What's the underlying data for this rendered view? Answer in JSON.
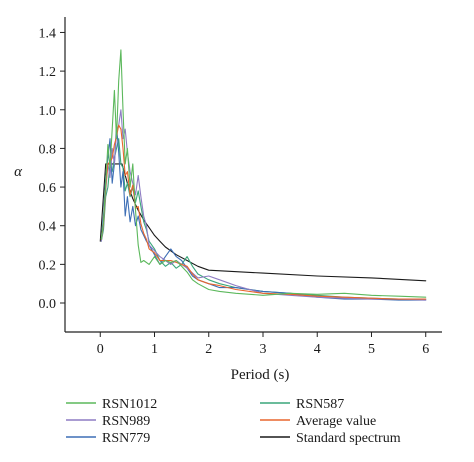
{
  "chart_data": {
    "type": "line",
    "title": "",
    "xlabel": "Period (s)",
    "ylabel": "α",
    "xlim": [
      -0.65,
      6.3
    ],
    "ylim": [
      -0.15,
      1.48
    ],
    "xticks": [
      "0",
      "1",
      "2",
      "3",
      "4",
      "5",
      "6"
    ],
    "xtick_values": [
      0,
      1,
      2,
      3,
      4,
      5,
      6
    ],
    "yticks": [
      "0.0",
      "0.2",
      "0.4",
      "0.6",
      "0.8",
      "1.0",
      "1.2",
      "1.4"
    ],
    "ytick_values": [
      0,
      0.2,
      0.4,
      0.6,
      0.8,
      1.0,
      1.2,
      1.4
    ],
    "grid": false,
    "legend_position": "bottom",
    "series": [
      {
        "name": "RSN1012",
        "color": "#5cb85c",
        "points": [
          [
            0.02,
            0.33
          ],
          [
            0.06,
            0.42
          ],
          [
            0.1,
            0.62
          ],
          [
            0.14,
            0.82
          ],
          [
            0.18,
            0.7
          ],
          [
            0.22,
            0.9
          ],
          [
            0.26,
            1.1
          ],
          [
            0.3,
            0.85
          ],
          [
            0.34,
            1.15
          ],
          [
            0.38,
            1.31
          ],
          [
            0.42,
            1.0
          ],
          [
            0.46,
            0.72
          ],
          [
            0.5,
            0.8
          ],
          [
            0.55,
            0.6
          ],
          [
            0.6,
            0.72
          ],
          [
            0.65,
            0.48
          ],
          [
            0.7,
            0.3
          ],
          [
            0.75,
            0.21
          ],
          [
            0.8,
            0.22
          ],
          [
            0.9,
            0.2
          ],
          [
            1.0,
            0.24
          ],
          [
            1.1,
            0.2
          ],
          [
            1.2,
            0.22
          ],
          [
            1.3,
            0.21
          ],
          [
            1.4,
            0.22
          ],
          [
            1.5,
            0.19
          ],
          [
            1.6,
            0.16
          ],
          [
            1.7,
            0.12
          ],
          [
            1.8,
            0.1
          ],
          [
            2.0,
            0.07
          ],
          [
            2.2,
            0.06
          ],
          [
            2.5,
            0.05
          ],
          [
            3.0,
            0.04
          ],
          [
            3.5,
            0.05
          ],
          [
            4.0,
            0.045
          ],
          [
            4.5,
            0.05
          ],
          [
            5.0,
            0.04
          ],
          [
            5.5,
            0.035
          ],
          [
            6.0,
            0.03
          ]
        ]
      },
      {
        "name": "RSN989",
        "color": "#8e7cc3",
        "points": [
          [
            0.02,
            0.32
          ],
          [
            0.06,
            0.4
          ],
          [
            0.1,
            0.58
          ],
          [
            0.14,
            0.72
          ],
          [
            0.18,
            0.65
          ],
          [
            0.22,
            0.8
          ],
          [
            0.26,
            0.72
          ],
          [
            0.3,
            0.88
          ],
          [
            0.34,
            0.92
          ],
          [
            0.38,
            1.0
          ],
          [
            0.42,
            0.85
          ],
          [
            0.46,
            0.9
          ],
          [
            0.5,
            0.78
          ],
          [
            0.55,
            0.68
          ],
          [
            0.6,
            0.62
          ],
          [
            0.65,
            0.56
          ],
          [
            0.7,
            0.66
          ],
          [
            0.75,
            0.55
          ],
          [
            0.8,
            0.45
          ],
          [
            0.85,
            0.4
          ],
          [
            0.9,
            0.3
          ],
          [
            1.0,
            0.27
          ],
          [
            1.1,
            0.24
          ],
          [
            1.2,
            0.22
          ],
          [
            1.3,
            0.2
          ],
          [
            1.4,
            0.22
          ],
          [
            1.5,
            0.2
          ],
          [
            1.6,
            0.18
          ],
          [
            1.8,
            0.13
          ],
          [
            2.0,
            0.14
          ],
          [
            2.2,
            0.12
          ],
          [
            2.5,
            0.09
          ],
          [
            3.0,
            0.05
          ],
          [
            3.5,
            0.04
          ],
          [
            4.0,
            0.03
          ],
          [
            4.5,
            0.025
          ],
          [
            5.0,
            0.02
          ],
          [
            5.5,
            0.02
          ],
          [
            6.0,
            0.015
          ]
        ]
      },
      {
        "name": "RSN779",
        "color": "#3d6eb5",
        "points": [
          [
            0.02,
            0.33
          ],
          [
            0.06,
            0.45
          ],
          [
            0.1,
            0.65
          ],
          [
            0.14,
            0.75
          ],
          [
            0.18,
            0.85
          ],
          [
            0.22,
            0.62
          ],
          [
            0.26,
            0.72
          ],
          [
            0.3,
            0.92
          ],
          [
            0.34,
            0.78
          ],
          [
            0.38,
            0.6
          ],
          [
            0.42,
            0.68
          ],
          [
            0.46,
            0.45
          ],
          [
            0.5,
            0.55
          ],
          [
            0.55,
            0.42
          ],
          [
            0.6,
            0.5
          ],
          [
            0.65,
            0.4
          ],
          [
            0.7,
            0.45
          ],
          [
            0.75,
            0.38
          ],
          [
            0.8,
            0.35
          ],
          [
            0.85,
            0.32
          ],
          [
            0.9,
            0.3
          ],
          [
            1.0,
            0.25
          ],
          [
            1.1,
            0.2
          ],
          [
            1.2,
            0.24
          ],
          [
            1.3,
            0.28
          ],
          [
            1.4,
            0.24
          ],
          [
            1.5,
            0.22
          ],
          [
            1.6,
            0.18
          ],
          [
            1.7,
            0.14
          ],
          [
            1.8,
            0.12
          ],
          [
            2.0,
            0.1
          ],
          [
            2.2,
            0.08
          ],
          [
            2.5,
            0.08
          ],
          [
            3.0,
            0.06
          ],
          [
            3.5,
            0.05
          ],
          [
            4.0,
            0.03
          ],
          [
            4.5,
            0.02
          ],
          [
            5.0,
            0.02
          ],
          [
            5.5,
            0.015
          ],
          [
            6.0,
            0.015
          ]
        ]
      },
      {
        "name": "RSN587",
        "color": "#3aa67a",
        "points": [
          [
            0.02,
            0.32
          ],
          [
            0.06,
            0.38
          ],
          [
            0.1,
            0.55
          ],
          [
            0.14,
            0.6
          ],
          [
            0.18,
            0.72
          ],
          [
            0.22,
            0.68
          ],
          [
            0.26,
            0.75
          ],
          [
            0.3,
            0.8
          ],
          [
            0.34,
            0.85
          ],
          [
            0.38,
            0.72
          ],
          [
            0.42,
            0.7
          ],
          [
            0.46,
            0.58
          ],
          [
            0.5,
            0.62
          ],
          [
            0.55,
            0.55
          ],
          [
            0.6,
            0.6
          ],
          [
            0.65,
            0.52
          ],
          [
            0.7,
            0.58
          ],
          [
            0.75,
            0.5
          ],
          [
            0.8,
            0.42
          ],
          [
            0.85,
            0.38
          ],
          [
            0.9,
            0.32
          ],
          [
            1.0,
            0.28
          ],
          [
            1.1,
            0.22
          ],
          [
            1.2,
            0.19
          ],
          [
            1.3,
            0.21
          ],
          [
            1.4,
            0.18
          ],
          [
            1.5,
            0.2
          ],
          [
            1.6,
            0.24
          ],
          [
            1.7,
            0.19
          ],
          [
            1.8,
            0.15
          ],
          [
            2.0,
            0.12
          ],
          [
            2.2,
            0.1
          ],
          [
            2.5,
            0.08
          ],
          [
            3.0,
            0.06
          ],
          [
            3.5,
            0.05
          ],
          [
            4.0,
            0.04
          ],
          [
            4.5,
            0.03
          ],
          [
            5.0,
            0.025
          ],
          [
            5.5,
            0.02
          ],
          [
            6.0,
            0.02
          ]
        ]
      },
      {
        "name": "Average value",
        "color": "#e8662e",
        "points": [
          [
            0.02,
            0.33
          ],
          [
            0.06,
            0.41
          ],
          [
            0.1,
            0.6
          ],
          [
            0.14,
            0.72
          ],
          [
            0.18,
            0.73
          ],
          [
            0.22,
            0.75
          ],
          [
            0.26,
            0.82
          ],
          [
            0.3,
            0.86
          ],
          [
            0.34,
            0.92
          ],
          [
            0.38,
            0.9
          ],
          [
            0.42,
            0.8
          ],
          [
            0.46,
            0.66
          ],
          [
            0.5,
            0.68
          ],
          [
            0.55,
            0.56
          ],
          [
            0.6,
            0.61
          ],
          [
            0.65,
            0.49
          ],
          [
            0.7,
            0.5
          ],
          [
            0.75,
            0.41
          ],
          [
            0.8,
            0.36
          ],
          [
            0.85,
            0.33
          ],
          [
            0.9,
            0.28
          ],
          [
            1.0,
            0.26
          ],
          [
            1.1,
            0.22
          ],
          [
            1.2,
            0.22
          ],
          [
            1.3,
            0.22
          ],
          [
            1.4,
            0.21
          ],
          [
            1.5,
            0.2
          ],
          [
            1.6,
            0.19
          ],
          [
            1.7,
            0.15
          ],
          [
            1.8,
            0.12
          ],
          [
            2.0,
            0.1
          ],
          [
            2.2,
            0.09
          ],
          [
            2.5,
            0.07
          ],
          [
            3.0,
            0.05
          ],
          [
            3.5,
            0.045
          ],
          [
            4.0,
            0.035
          ],
          [
            4.5,
            0.03
          ],
          [
            5.0,
            0.025
          ],
          [
            5.5,
            0.02
          ],
          [
            6.0,
            0.02
          ]
        ]
      },
      {
        "name": "Standard spectrum",
        "color": "#1a1a1a",
        "points": [
          [
            0.0,
            0.32
          ],
          [
            0.1,
            0.72
          ],
          [
            0.4,
            0.72
          ],
          [
            0.5,
            0.62
          ],
          [
            0.6,
            0.54
          ],
          [
            0.7,
            0.48
          ],
          [
            0.8,
            0.43
          ],
          [
            0.9,
            0.39
          ],
          [
            1.0,
            0.35
          ],
          [
            1.1,
            0.32
          ],
          [
            1.2,
            0.29
          ],
          [
            1.4,
            0.25
          ],
          [
            1.6,
            0.22
          ],
          [
            1.8,
            0.19
          ],
          [
            2.0,
            0.17
          ],
          [
            3.0,
            0.155
          ],
          [
            4.0,
            0.14
          ],
          [
            5.0,
            0.13
          ],
          [
            6.0,
            0.115
          ]
        ]
      }
    ]
  }
}
